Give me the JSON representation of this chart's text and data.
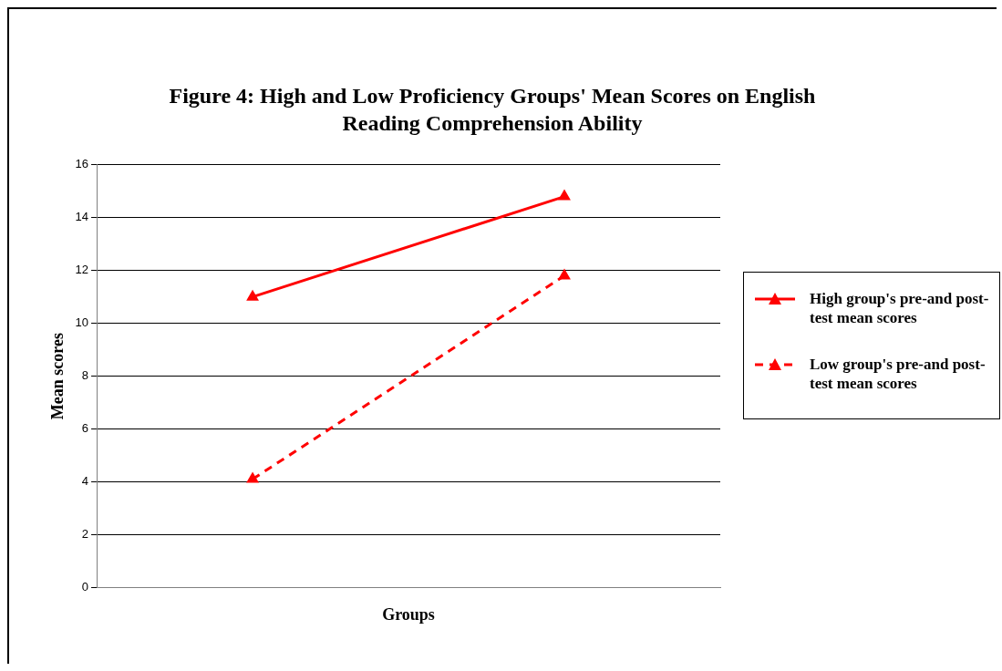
{
  "chart_data": {
    "type": "line",
    "title": "Figure 4: High and Low Proficiency Groups' Mean Scores on English Reading Comprehension Ability",
    "xlabel": "Groups",
    "ylabel": "Mean scores",
    "categories": [
      null,
      null
    ],
    "series": [
      {
        "name": "High group's pre-and post-test mean scores",
        "color": "#ff0000",
        "values": [
          11.0,
          14.8
        ],
        "line_style": "solid"
      },
      {
        "name": "Low group's pre-and post-test mean scores",
        "color": "#ff0000",
        "values": [
          4.1,
          11.8
        ],
        "line_style": "dashed"
      }
    ],
    "ylim": [
      0,
      16
    ],
    "yticks": [
      0,
      2,
      4,
      6,
      8,
      10,
      12,
      14,
      16
    ],
    "grid": "y",
    "legend": "right",
    "marker": "triangle",
    "tick_labels": "y"
  }
}
